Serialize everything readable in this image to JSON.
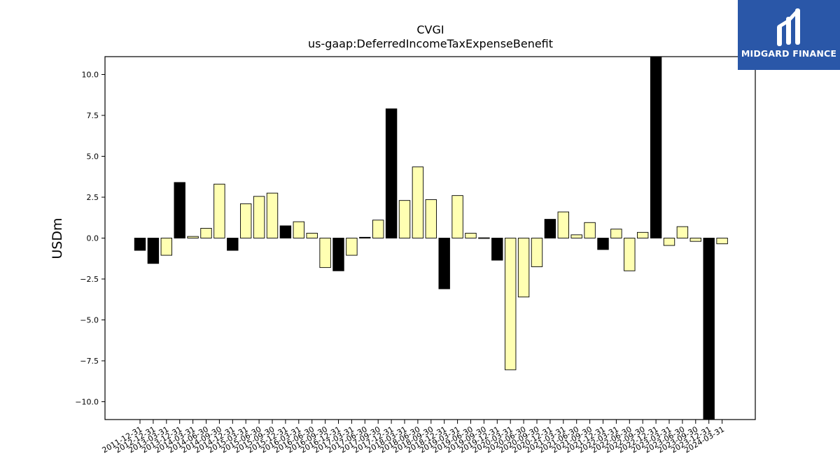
{
  "logo": {
    "text": "MIDGARD FINANCE",
    "icon": "midgard-m-logo-icon",
    "background": "#2a57a8"
  },
  "colors": {
    "positive_bar": "#ffffb2",
    "highlight_bar": "#000000",
    "bar_edge": "#000000"
  },
  "chart_data": {
    "type": "bar",
    "title": "CVGI",
    "subtitle": "us-gaap:DeferredIncomeTaxExpenseBenefit",
    "ylabel": "USDm",
    "xlabel": "",
    "ylim": [
      -11.1,
      11.1
    ],
    "yticks": [
      10.0,
      7.5,
      5.0,
      2.5,
      0.0,
      -2.5,
      -5.0,
      -7.5,
      -10.0
    ],
    "ytick_labels": [
      "10.0",
      "7.5",
      "5.0",
      "2.5",
      "0.0",
      "−2.5",
      "−5.0",
      "−7.5",
      "−10.0"
    ],
    "grid": false,
    "categories": [
      "2011-12-31",
      "2012-12-31",
      "2013-03-31",
      "2013-12-31",
      "2014-03-31",
      "2014-06-30",
      "2014-09-30",
      "2014-12-31",
      "2015-03-31",
      "2015-06-30",
      "2015-09-30",
      "2015-12-31",
      "2016-03-31",
      "2016-06-30",
      "2016-09-30",
      "2016-12-31",
      "2017-03-31",
      "2017-06-30",
      "2017-09-30",
      "2017-12-31",
      "2018-03-31",
      "2018-06-30",
      "2018-09-30",
      "2018-12-31",
      "2019-03-31",
      "2019-06-30",
      "2019-09-30",
      "2019-12-31",
      "2020-03-31",
      "2020-06-30",
      "2020-09-30",
      "2020-12-31",
      "2021-03-31",
      "2021-06-30",
      "2021-09-30",
      "2021-12-31",
      "2022-03-31",
      "2022-06-30",
      "2022-09-30",
      "2022-12-31",
      "2023-03-31",
      "2023-06-30",
      "2023-09-30",
      "2023-12-31",
      "2024-03-31"
    ],
    "values": [
      -0.75,
      -1.55,
      -1.05,
      3.4,
      0.1,
      0.6,
      3.3,
      -0.75,
      2.1,
      2.55,
      2.75,
      0.75,
      1.0,
      0.3,
      -1.8,
      -2.0,
      -1.05,
      0.05,
      1.1,
      7.9,
      2.3,
      4.35,
      2.35,
      -3.1,
      2.6,
      0.3,
      0.02,
      -1.35,
      -8.05,
      -3.6,
      -1.75,
      1.15,
      1.6,
      0.2,
      0.95,
      -0.7,
      0.55,
      -2.0,
      0.35,
      11.1,
      -0.45,
      0.7,
      -0.2,
      -11.1,
      -0.35
    ],
    "highlighted": [
      true,
      true,
      false,
      true,
      false,
      false,
      false,
      true,
      false,
      false,
      false,
      true,
      false,
      false,
      false,
      true,
      false,
      true,
      false,
      true,
      false,
      false,
      false,
      true,
      false,
      false,
      false,
      true,
      false,
      false,
      false,
      true,
      false,
      false,
      false,
      true,
      false,
      false,
      false,
      true,
      false,
      false,
      false,
      true,
      false
    ]
  }
}
